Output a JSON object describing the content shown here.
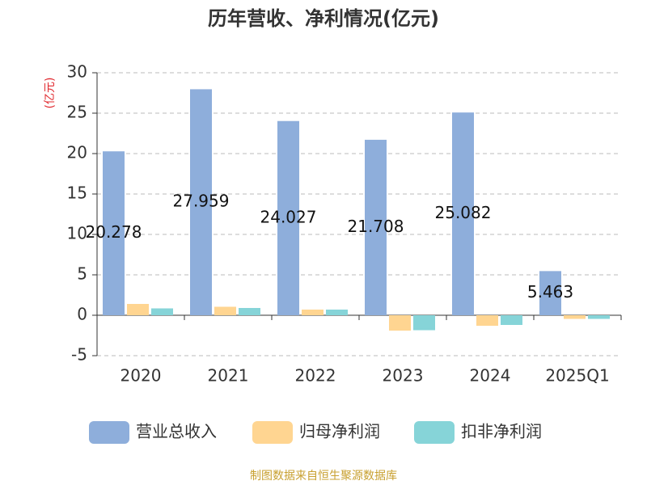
{
  "chart_data": {
    "type": "bar",
    "title": "历年营收、净利情况(亿元)",
    "y_label": "(亿元)",
    "categories": [
      "2020",
      "2021",
      "2022",
      "2023",
      "2024",
      "2025Q1"
    ],
    "series": [
      {
        "name": "营业总收入",
        "color": "#8eaedb",
        "values": [
          20.278,
          27.959,
          24.027,
          21.708,
          25.082,
          5.463
        ],
        "show_labels": true
      },
      {
        "name": "归母净利润",
        "color": "#ffd591",
        "values": [
          1.4,
          1.05,
          0.7,
          -1.9,
          -1.3,
          -0.45
        ]
      },
      {
        "name": "扣非净利润",
        "color": "#86d4d8",
        "values": [
          0.85,
          0.9,
          0.7,
          -1.85,
          -1.2,
          -0.45
        ]
      }
    ],
    "ylim": [
      -5,
      30
    ],
    "yticks": [
      -5,
      0,
      5,
      10,
      15,
      20,
      25,
      30
    ],
    "grid": true,
    "source": "制图数据来自恒生聚源数据库"
  }
}
